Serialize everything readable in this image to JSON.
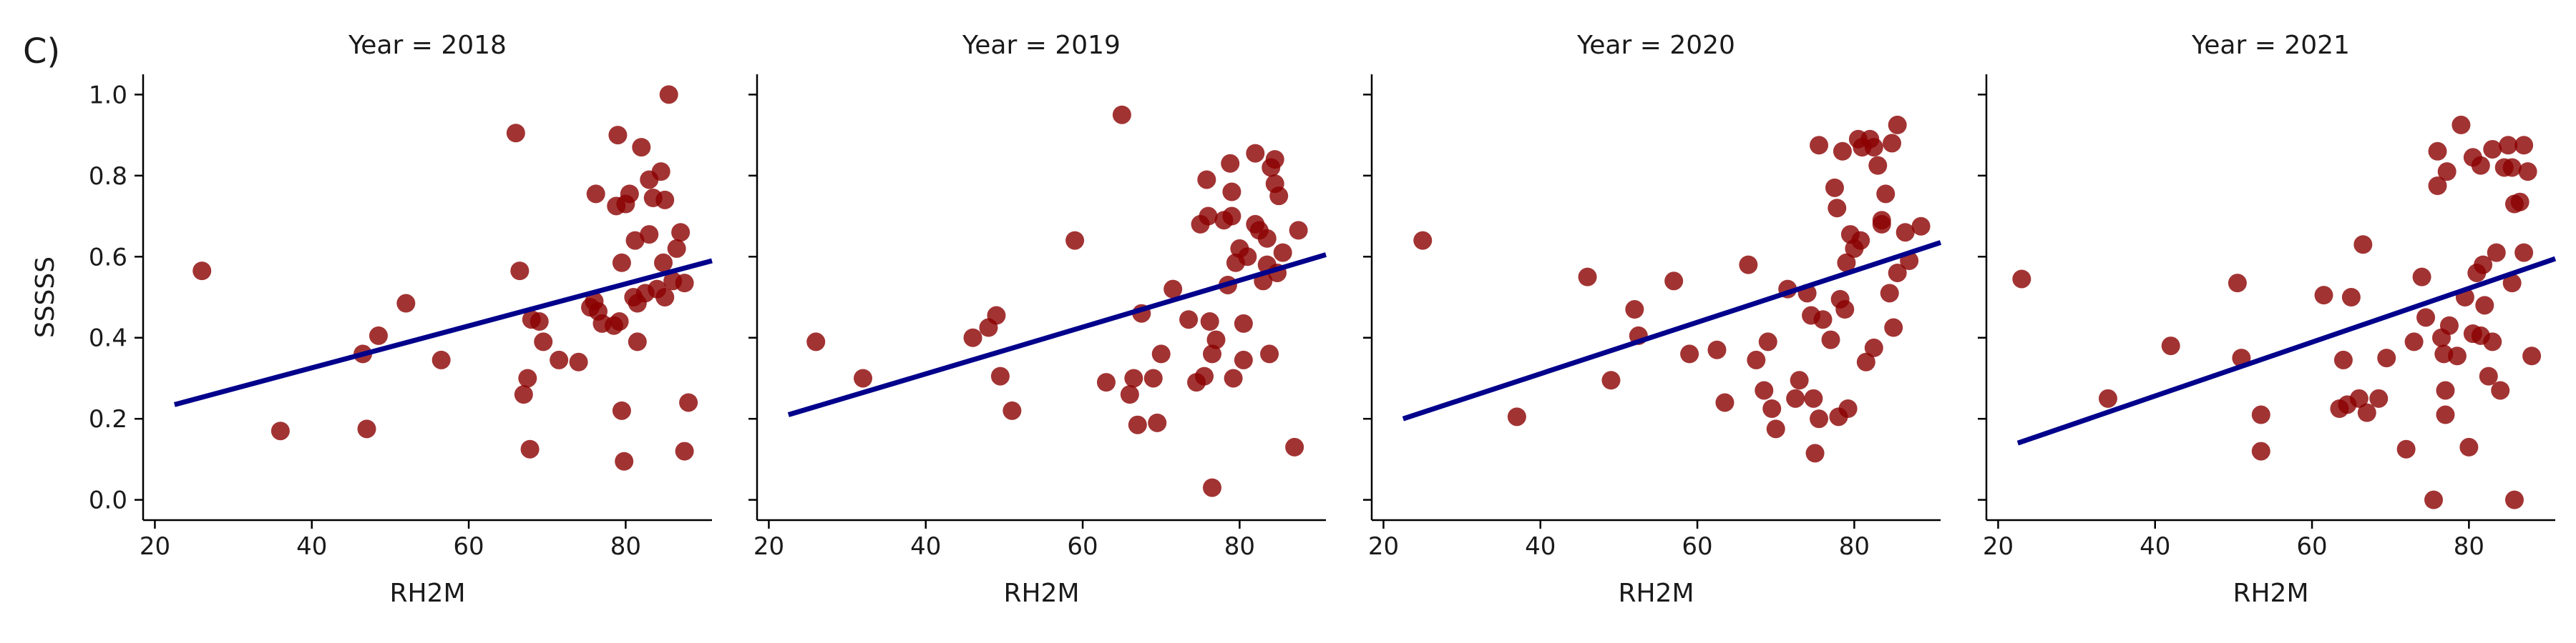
{
  "figure": {
    "panel_letter": "C)"
  },
  "chart_data": [
    {
      "type": "scatter",
      "title": "Year = 2018",
      "xlabel": "RH2M",
      "ylabel": "SSSSS",
      "xlim": [
        18.5,
        91
      ],
      "ylim": [
        -0.05,
        1.05
      ],
      "xticks": [
        20,
        40,
        60,
        80
      ],
      "yticks": [
        0.0,
        0.2,
        0.4,
        0.6,
        0.8,
        1.0
      ],
      "point_color": "#8b0000",
      "line_color": "#00008b",
      "fit_line": {
        "x": [
          22.5,
          91
        ],
        "y": [
          0.235,
          0.59
        ]
      },
      "points": [
        [
          26,
          0.565
        ],
        [
          36,
          0.17
        ],
        [
          46.5,
          0.36
        ],
        [
          47,
          0.175
        ],
        [
          48.5,
          0.405
        ],
        [
          52,
          0.485
        ],
        [
          56.5,
          0.345
        ],
        [
          66,
          0.905
        ],
        [
          66.5,
          0.565
        ],
        [
          67,
          0.26
        ],
        [
          67.5,
          0.3
        ],
        [
          67.8,
          0.125
        ],
        [
          68,
          0.445
        ],
        [
          69,
          0.44
        ],
        [
          69.5,
          0.39
        ],
        [
          71.5,
          0.345
        ],
        [
          74,
          0.34
        ],
        [
          75.5,
          0.475
        ],
        [
          76,
          0.49
        ],
        [
          76.5,
          0.465
        ],
        [
          76.2,
          0.755
        ],
        [
          77,
          0.435
        ],
        [
          78.5,
          0.43
        ],
        [
          78.8,
          0.725
        ],
        [
          79,
          0.9
        ],
        [
          79.2,
          0.44
        ],
        [
          79.5,
          0.585
        ],
        [
          79.5,
          0.22
        ],
        [
          79.8,
          0.095
        ],
        [
          80,
          0.73
        ],
        [
          80.5,
          0.755
        ],
        [
          81,
          0.5
        ],
        [
          81.2,
          0.64
        ],
        [
          81.5,
          0.485
        ],
        [
          81.5,
          0.39
        ],
        [
          82,
          0.87
        ],
        [
          82.5,
          0.51
        ],
        [
          83,
          0.655
        ],
        [
          83,
          0.79
        ],
        [
          83.5,
          0.745
        ],
        [
          84,
          0.52
        ],
        [
          84.5,
          0.81
        ],
        [
          84.8,
          0.585
        ],
        [
          85,
          0.5
        ],
        [
          85,
          0.74
        ],
        [
          85.5,
          1.0
        ],
        [
          86,
          0.54
        ],
        [
          86.5,
          0.62
        ],
        [
          87,
          0.66
        ],
        [
          87.5,
          0.535
        ],
        [
          87.5,
          0.12
        ],
        [
          88,
          0.24
        ]
      ]
    },
    {
      "type": "scatter",
      "title": "Year = 2019",
      "xlabel": "RH2M",
      "ylabel": "",
      "xlim": [
        18.5,
        91
      ],
      "ylim": [
        -0.05,
        1.05
      ],
      "xticks": [
        20,
        40,
        60,
        80
      ],
      "yticks": [
        0.0,
        0.2,
        0.4,
        0.6,
        0.8,
        1.0
      ],
      "point_color": "#8b0000",
      "line_color": "#00008b",
      "fit_line": {
        "x": [
          22.5,
          91
        ],
        "y": [
          0.21,
          0.605
        ]
      },
      "points": [
        [
          26,
          0.39
        ],
        [
          32,
          0.3
        ],
        [
          46,
          0.4
        ],
        [
          48,
          0.425
        ],
        [
          49,
          0.455
        ],
        [
          49.5,
          0.305
        ],
        [
          51,
          0.22
        ],
        [
          59,
          0.64
        ],
        [
          63,
          0.29
        ],
        [
          65,
          0.95
        ],
        [
          66,
          0.26
        ],
        [
          66.5,
          0.3
        ],
        [
          67,
          0.185
        ],
        [
          67.5,
          0.46
        ],
        [
          69,
          0.3
        ],
        [
          69.5,
          0.19
        ],
        [
          70,
          0.36
        ],
        [
          71.5,
          0.52
        ],
        [
          73.5,
          0.445
        ],
        [
          74.5,
          0.29
        ],
        [
          75,
          0.68
        ],
        [
          75.5,
          0.305
        ],
        [
          75.8,
          0.79
        ],
        [
          76,
          0.7
        ],
        [
          76.2,
          0.44
        ],
        [
          76.5,
          0.36
        ],
        [
          76.5,
          0.03
        ],
        [
          77,
          0.395
        ],
        [
          78,
          0.69
        ],
        [
          78.5,
          0.53
        ],
        [
          78.8,
          0.83
        ],
        [
          79,
          0.7
        ],
        [
          79,
          0.76
        ],
        [
          79.2,
          0.3
        ],
        [
          79.5,
          0.585
        ],
        [
          80,
          0.62
        ],
        [
          80.5,
          0.435
        ],
        [
          80.5,
          0.345
        ],
        [
          81,
          0.6
        ],
        [
          82,
          0.855
        ],
        [
          82,
          0.68
        ],
        [
          82.5,
          0.665
        ],
        [
          83,
          0.54
        ],
        [
          83.5,
          0.645
        ],
        [
          83.5,
          0.58
        ],
        [
          83.8,
          0.36
        ],
        [
          84,
          0.82
        ],
        [
          84.5,
          0.84
        ],
        [
          84.5,
          0.78
        ],
        [
          84.8,
          0.56
        ],
        [
          85,
          0.75
        ],
        [
          85.5,
          0.61
        ],
        [
          87,
          0.13
        ],
        [
          87.5,
          0.665
        ]
      ]
    },
    {
      "type": "scatter",
      "title": "Year = 2020",
      "xlabel": "RH2M",
      "ylabel": "",
      "xlim": [
        18.5,
        91
      ],
      "ylim": [
        -0.05,
        1.05
      ],
      "xticks": [
        20,
        40,
        60,
        80
      ],
      "yticks": [
        0.0,
        0.2,
        0.4,
        0.6,
        0.8,
        1.0
      ],
      "point_color": "#8b0000",
      "line_color": "#00008b",
      "fit_line": {
        "x": [
          22.5,
          91
        ],
        "y": [
          0.2,
          0.635
        ]
      },
      "points": [
        [
          25,
          0.64
        ],
        [
          37,
          0.205
        ],
        [
          46,
          0.55
        ],
        [
          49,
          0.295
        ],
        [
          52,
          0.47
        ],
        [
          52.5,
          0.405
        ],
        [
          57,
          0.54
        ],
        [
          59,
          0.36
        ],
        [
          62.5,
          0.37
        ],
        [
          63.5,
          0.24
        ],
        [
          66.5,
          0.58
        ],
        [
          67.5,
          0.345
        ],
        [
          68.5,
          0.27
        ],
        [
          69,
          0.39
        ],
        [
          69.5,
          0.225
        ],
        [
          70,
          0.175
        ],
        [
          71.5,
          0.52
        ],
        [
          72.5,
          0.25
        ],
        [
          73,
          0.295
        ],
        [
          74,
          0.51
        ],
        [
          74.5,
          0.455
        ],
        [
          74.8,
          0.25
        ],
        [
          75,
          0.115
        ],
        [
          75.5,
          0.875
        ],
        [
          75.5,
          0.2
        ],
        [
          76,
          0.445
        ],
        [
          77,
          0.395
        ],
        [
          77.5,
          0.77
        ],
        [
          77.8,
          0.72
        ],
        [
          78,
          0.205
        ],
        [
          78.2,
          0.495
        ],
        [
          78.5,
          0.86
        ],
        [
          78.8,
          0.47
        ],
        [
          79,
          0.585
        ],
        [
          79.2,
          0.225
        ],
        [
          79.5,
          0.655
        ],
        [
          80,
          0.62
        ],
        [
          80.5,
          0.89
        ],
        [
          80.8,
          0.64
        ],
        [
          81,
          0.87
        ],
        [
          81.5,
          0.34
        ],
        [
          82,
          0.89
        ],
        [
          82.5,
          0.375
        ],
        [
          82.5,
          0.87
        ],
        [
          83,
          0.825
        ],
        [
          83.5,
          0.68
        ],
        [
          83.5,
          0.69
        ],
        [
          84,
          0.755
        ],
        [
          84.5,
          0.51
        ],
        [
          84.8,
          0.88
        ],
        [
          85,
          0.425
        ],
        [
          85.5,
          0.925
        ],
        [
          85.5,
          0.56
        ],
        [
          86.5,
          0.66
        ],
        [
          87,
          0.59
        ],
        [
          88.5,
          0.675
        ]
      ]
    },
    {
      "type": "scatter",
      "title": "Year = 2021",
      "xlabel": "RH2M",
      "ylabel": "",
      "xlim": [
        18.5,
        91
      ],
      "ylim": [
        -0.05,
        1.05
      ],
      "xticks": [
        20,
        40,
        60,
        80
      ],
      "yticks": [
        0.0,
        0.2,
        0.4,
        0.6,
        0.8,
        1.0
      ],
      "point_color": "#8b0000",
      "line_color": "#00008b",
      "fit_line": {
        "x": [
          22.5,
          91
        ],
        "y": [
          0.14,
          0.595
        ]
      },
      "points": [
        [
          23,
          0.545
        ],
        [
          34,
          0.25
        ],
        [
          42,
          0.38
        ],
        [
          50.5,
          0.535
        ],
        [
          51,
          0.35
        ],
        [
          53.5,
          0.21
        ],
        [
          53.5,
          0.12
        ],
        [
          61.5,
          0.505
        ],
        [
          63.5,
          0.225
        ],
        [
          64,
          0.345
        ],
        [
          64.5,
          0.235
        ],
        [
          65,
          0.5
        ],
        [
          66,
          0.25
        ],
        [
          66.5,
          0.63
        ],
        [
          67,
          0.215
        ],
        [
          68.5,
          0.25
        ],
        [
          69.5,
          0.35
        ],
        [
          72,
          0.125
        ],
        [
          73,
          0.39
        ],
        [
          74,
          0.55
        ],
        [
          74.5,
          0.45
        ],
        [
          75.5,
          0.0
        ],
        [
          76,
          0.86
        ],
        [
          76,
          0.775
        ],
        [
          76.5,
          0.4
        ],
        [
          76.8,
          0.36
        ],
        [
          77,
          0.27
        ],
        [
          77,
          0.21
        ],
        [
          77.2,
          0.81
        ],
        [
          77.5,
          0.43
        ],
        [
          78.5,
          0.355
        ],
        [
          79,
          0.925
        ],
        [
          79.5,
          0.5
        ],
        [
          80,
          0.13
        ],
        [
          80.5,
          0.845
        ],
        [
          80.5,
          0.41
        ],
        [
          81,
          0.56
        ],
        [
          81.5,
          0.825
        ],
        [
          81.5,
          0.405
        ],
        [
          81.8,
          0.58
        ],
        [
          82,
          0.48
        ],
        [
          82.5,
          0.305
        ],
        [
          83,
          0.39
        ],
        [
          83,
          0.865
        ],
        [
          83.5,
          0.61
        ],
        [
          84,
          0.27
        ],
        [
          84.5,
          0.82
        ],
        [
          85,
          0.875
        ],
        [
          85.5,
          0.82
        ],
        [
          85.5,
          0.535
        ],
        [
          85.8,
          0.73
        ],
        [
          85.8,
          0.0
        ],
        [
          86.5,
          0.735
        ],
        [
          87,
          0.875
        ],
        [
          87,
          0.61
        ],
        [
          87.5,
          0.81
        ],
        [
          88,
          0.355
        ]
      ]
    }
  ]
}
